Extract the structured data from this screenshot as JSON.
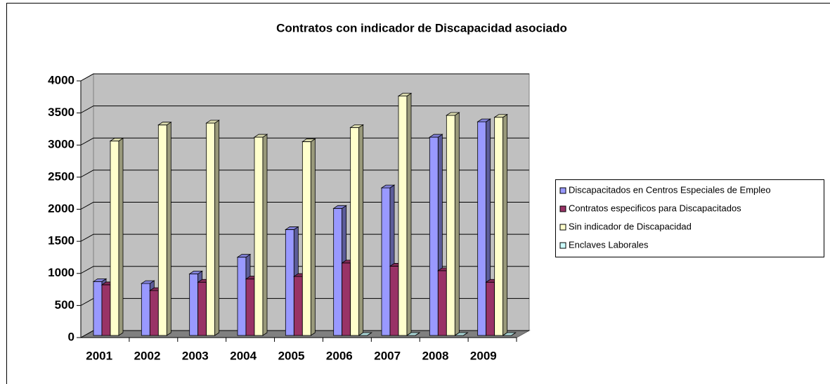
{
  "chart_data": {
    "type": "bar3d",
    "title": "Contratos con indicador de Discapacidad asociado",
    "categories": [
      "2001",
      "2002",
      "2003",
      "2004",
      "2005",
      "2006",
      "2007",
      "2008",
      "2009"
    ],
    "series": [
      {
        "name": "Discapacitados en Centros Especiales de Empleo",
        "color": "#9999ff",
        "values": [
          840,
          810,
          960,
          1220,
          1650,
          1980,
          2300,
          3090,
          3330
        ]
      },
      {
        "name": "Contratos especificos para Discapacitados",
        "color": "#993366",
        "values": [
          790,
          700,
          830,
          880,
          920,
          1130,
          1080,
          1010,
          830
        ]
      },
      {
        "name": "Sin indicador de Discapacidad",
        "color": "#ffffcc",
        "values": [
          3030,
          3280,
          3310,
          3090,
          3020,
          3240,
          3730,
          3430,
          3400
        ]
      },
      {
        "name": "Enclaves Laborales",
        "color": "#ccffff",
        "values": [
          null,
          null,
          null,
          null,
          null,
          0,
          0,
          0,
          0
        ]
      }
    ],
    "ylim": [
      0,
      4000
    ],
    "yticks": [
      0,
      500,
      1000,
      1500,
      2000,
      2500,
      3000,
      3500,
      4000
    ],
    "grid": true
  }
}
